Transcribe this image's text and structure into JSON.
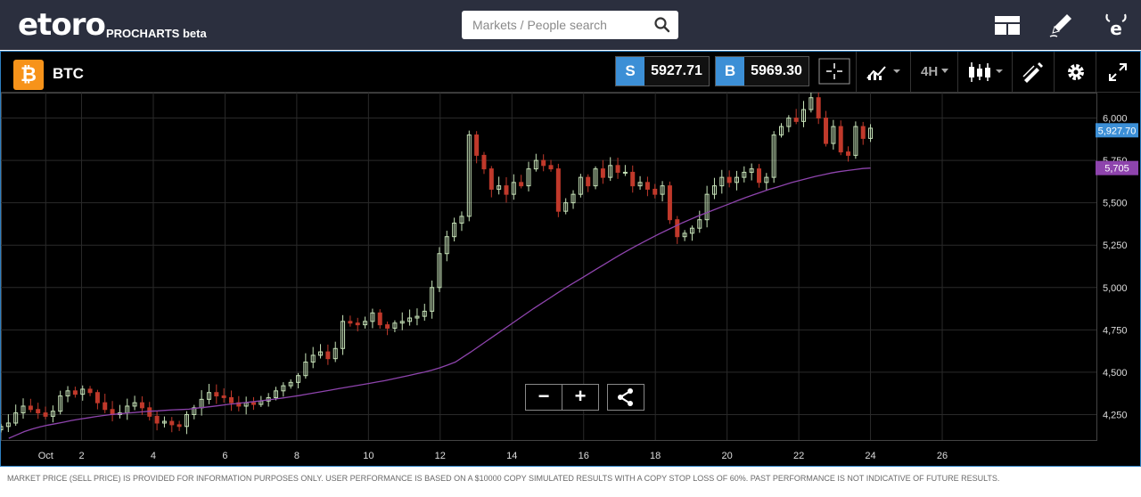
{
  "header": {
    "logo_text": "etoro",
    "product_label": "PROCHARTS beta",
    "search_placeholder": "Markets / People search",
    "icons": [
      "layout-icon",
      "pencil-icon",
      "etoro-e-icon"
    ]
  },
  "instrument": {
    "symbol": "BTC",
    "icon_glyph": "₿",
    "sell_label": "S",
    "sell_price": "5927.71",
    "buy_label": "B",
    "buy_price": "5969.30",
    "timeframe": "4H"
  },
  "toolbar_icons": [
    "crosshair-icon",
    "indicators-icon",
    "timeframe-dropdown",
    "candlestick-icon",
    "drawing-icon",
    "gear-icon",
    "fullscreen-icon"
  ],
  "chart_data": {
    "type": "candlestick",
    "timeframe": "4H",
    "x_ticks": [
      "Oct",
      "2",
      "4",
      "6",
      "8",
      "10",
      "12",
      "14",
      "16",
      "18",
      "20",
      "22",
      "24",
      "26"
    ],
    "y_ticks": [
      "6,000",
      "5,750",
      "5,500",
      "5,250",
      "5,000",
      "4,750",
      "4,500",
      "4,250"
    ],
    "ylim": [
      4100,
      6150
    ],
    "xlim": [
      -1.25,
      29.3
    ],
    "current_price_label": "5,927.70",
    "ma_value_label": "5,705",
    "colors": {
      "up": "#c6e2b8",
      "down": "#c0392b",
      "ma": "#8e44ad",
      "price_tag": "#3c8fd6",
      "ma_tag": "#8e44ad",
      "grid": "#2a2a2a"
    },
    "close_series": [
      4180,
      4200,
      4260,
      4300,
      4280,
      4260,
      4240,
      4270,
      4360,
      4390,
      4370,
      4400,
      4380,
      4320,
      4280,
      4250,
      4260,
      4300,
      4320,
      4290,
      4240,
      4200,
      4210,
      4190,
      4180,
      4250,
      4290,
      4340,
      4380,
      4360,
      4350,
      4320,
      4300,
      4320,
      4310,
      4330,
      4350,
      4390,
      4420,
      4440,
      4480,
      4560,
      4600,
      4620,
      4580,
      4640,
      4800,
      4790,
      4780,
      4800,
      4850,
      4780,
      4760,
      4790,
      4800,
      4820,
      4830,
      4860,
      5000,
      5200,
      5300,
      5380,
      5420,
      5900,
      5780,
      5700,
      5580,
      5600,
      5550,
      5620,
      5600,
      5700,
      5750,
      5720,
      5700,
      5450,
      5500,
      5550,
      5650,
      5600,
      5700,
      5650,
      5720,
      5680,
      5680,
      5600,
      5620,
      5580,
      5550,
      5600,
      5400,
      5300,
      5320,
      5350,
      5400,
      5550,
      5600,
      5650,
      5620,
      5650,
      5680,
      5700,
      5620,
      5650,
      5900,
      5950,
      6000,
      5980,
      6050,
      6120,
      6000,
      5850,
      5950,
      5800,
      5780,
      5950,
      5880,
      5940
    ],
    "ma_series": [
      4090,
      4110,
      4130,
      4150,
      4165,
      4178,
      4188,
      4196,
      4205,
      4215,
      4223,
      4230,
      4237,
      4244,
      4250,
      4254,
      4258,
      4262,
      4266,
      4270,
      4272,
      4275,
      4278,
      4280,
      4282,
      4288,
      4293,
      4298,
      4304,
      4310,
      4315,
      4320,
      4325,
      4330,
      4336,
      4342,
      4348,
      4355,
      4362,
      4370,
      4378,
      4386,
      4394,
      4402,
      4410,
      4418,
      4426,
      4434,
      4442,
      4450,
      4460,
      4470,
      4480,
      4490,
      4500,
      4512,
      4526,
      4542,
      4560,
      4590,
      4620,
      4652,
      4684,
      4716,
      4748,
      4780,
      4812,
      4844,
      4876,
      4906,
      4936,
      4966,
      4996,
      5024,
      5052,
      5080,
      5108,
      5136,
      5164,
      5192,
      5218,
      5244,
      5268,
      5292,
      5316,
      5338,
      5360,
      5382,
      5402,
      5422,
      5440,
      5458,
      5476,
      5494,
      5512,
      5530,
      5546,
      5562,
      5578,
      5592,
      5606,
      5620,
      5632,
      5644,
      5656,
      5666,
      5676,
      5684,
      5690,
      5696,
      5702,
      5705
    ]
  },
  "controls": {
    "zoom_out_label": "−",
    "zoom_in_label": "+",
    "share_icon": "share-icon"
  },
  "footer": {
    "disclaimer": "MARKET PRICE (SELL PRICE) IS PROVIDED FOR INFORMATION PURPOSES ONLY. USER PERFORMANCE IS BASED ON A $10000 COPY SIMULATED RESULTS WITH A COPY STOP LOSS OF 60%. PAST PERFORMANCE IS NOT INDICATIVE OF FUTURE RESULTS."
  }
}
